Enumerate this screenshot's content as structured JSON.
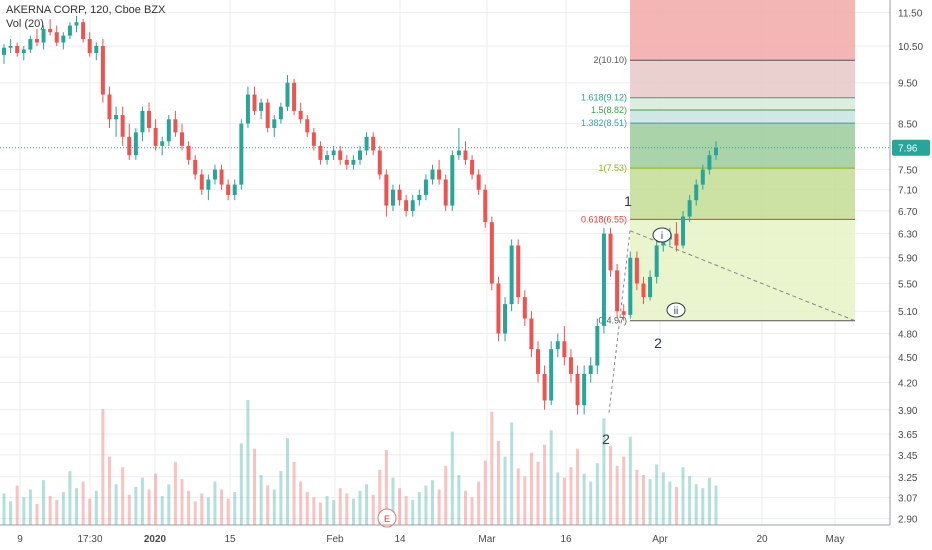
{
  "header": {
    "symbol_line": "AKERNA CORP, 120, Cboe BZX",
    "volume_label": "Vol (20)"
  },
  "colors": {
    "up": "#26a69a",
    "down": "#ef5350",
    "price_line": "#26a69a",
    "price_tag_bg": "#26a69a",
    "grid": "#ededed"
  },
  "chart_data": {
    "type": "candlestick",
    "title": "AKERNA CORP, 120, Cboe BZX",
    "y_axis_ticks": [
      "11.50",
      "10.50",
      "9.50",
      "8.50",
      "7.96",
      "7.50",
      "7.10",
      "6.70",
      "6.30",
      "5.90",
      "5.50",
      "5.10",
      "4.80",
      "4.50",
      "4.20",
      "3.90",
      "3.65",
      "3.45",
      "3.25",
      "3.07",
      "2.90"
    ],
    "price_scale": "log",
    "ylim": [
      2.85,
      11.9
    ],
    "x_axis_ticks": [
      "9",
      "17:30",
      "2020",
      "15",
      "Feb",
      "14",
      "Mar",
      "16",
      "Apr",
      "20",
      "May"
    ],
    "last_price": 7.96,
    "last_price_label": "7.96",
    "fib_levels": [
      {
        "ratio": 0,
        "price": 4.97,
        "label": "0(4.97)",
        "color": "#555555"
      },
      {
        "ratio": 0.618,
        "price": 6.55,
        "label": "0.618(6.55)",
        "color": "#e53935"
      },
      {
        "ratio": 1,
        "price": 7.53,
        "label": "1(7.53)",
        "color": "#8bb21c"
      },
      {
        "ratio": 1.382,
        "price": 8.51,
        "label": "1.382(8.51)",
        "color": "#3a9fad"
      },
      {
        "ratio": 1.5,
        "price": 8.82,
        "label": "1.5(8.82)",
        "color": "#43a047"
      },
      {
        "ratio": 1.618,
        "price": 9.12,
        "label": "1.618(9.12)",
        "color": "#26a69a"
      },
      {
        "ratio": 2,
        "price": 10.1,
        "label": "2(10.10)",
        "color": "#555555"
      }
    ],
    "wave_labels": [
      "1",
      "2",
      "2",
      "i",
      "ii"
    ],
    "event_marker": "E",
    "candles": [
      [
        10.25,
        10.55,
        10.0,
        10.45
      ],
      [
        10.45,
        10.7,
        10.3,
        10.5
      ],
      [
        10.5,
        10.6,
        10.2,
        10.3
      ],
      [
        10.3,
        10.5,
        10.1,
        10.4
      ],
      [
        10.4,
        10.8,
        10.3,
        10.7
      ],
      [
        10.7,
        11.0,
        10.5,
        10.6
      ],
      [
        10.6,
        11.1,
        10.4,
        11.0
      ],
      [
        11.0,
        11.3,
        10.8,
        10.9
      ],
      [
        10.9,
        11.1,
        10.5,
        10.6
      ],
      [
        10.6,
        10.9,
        10.4,
        10.8
      ],
      [
        10.8,
        11.2,
        10.7,
        11.1
      ],
      [
        11.1,
        11.4,
        10.9,
        11.2
      ],
      [
        11.2,
        11.3,
        10.6,
        10.7
      ],
      [
        10.7,
        10.9,
        10.2,
        10.3
      ],
      [
        10.3,
        10.6,
        10.1,
        10.5
      ],
      [
        10.5,
        10.7,
        9.0,
        9.2
      ],
      [
        9.2,
        9.4,
        8.4,
        8.6
      ],
      [
        8.6,
        8.9,
        8.2,
        8.7
      ],
      [
        8.7,
        8.9,
        8.0,
        8.2
      ],
      [
        8.2,
        8.5,
        7.7,
        7.8
      ],
      [
        7.8,
        8.4,
        7.7,
        8.3
      ],
      [
        8.3,
        8.9,
        8.1,
        8.8
      ],
      [
        8.8,
        9.0,
        8.3,
        8.4
      ],
      [
        8.4,
        8.6,
        7.9,
        8.0
      ],
      [
        8.0,
        8.2,
        7.8,
        8.1
      ],
      [
        8.1,
        8.7,
        8.0,
        8.6
      ],
      [
        8.6,
        8.8,
        8.2,
        8.3
      ],
      [
        8.3,
        8.5,
        7.9,
        8.0
      ],
      [
        8.0,
        8.1,
        7.6,
        7.7
      ],
      [
        7.7,
        7.8,
        7.3,
        7.4
      ],
      [
        7.4,
        7.5,
        7.0,
        7.1
      ],
      [
        7.1,
        7.4,
        6.9,
        7.3
      ],
      [
        7.3,
        7.6,
        7.2,
        7.5
      ],
      [
        7.5,
        7.6,
        7.1,
        7.2
      ],
      [
        7.2,
        7.3,
        6.9,
        7.0
      ],
      [
        7.0,
        7.3,
        6.9,
        7.2
      ],
      [
        7.2,
        8.6,
        7.1,
        8.5
      ],
      [
        8.5,
        9.4,
        8.4,
        9.2
      ],
      [
        9.2,
        9.4,
        8.7,
        8.8
      ],
      [
        8.8,
        9.1,
        8.6,
        9.0
      ],
      [
        9.0,
        9.1,
        8.3,
        8.4
      ],
      [
        8.4,
        8.7,
        8.2,
        8.6
      ],
      [
        8.6,
        9.0,
        8.5,
        8.9
      ],
      [
        8.9,
        9.7,
        8.8,
        9.5
      ],
      [
        9.5,
        9.6,
        8.7,
        8.8
      ],
      [
        8.8,
        9.0,
        8.5,
        8.6
      ],
      [
        8.6,
        8.7,
        8.2,
        8.3
      ],
      [
        8.3,
        8.4,
        7.9,
        8.0
      ],
      [
        8.0,
        8.1,
        7.6,
        7.7
      ],
      [
        7.7,
        7.9,
        7.6,
        7.8
      ],
      [
        7.8,
        8.0,
        7.7,
        7.9
      ],
      [
        7.9,
        8.0,
        7.6,
        7.7
      ],
      [
        7.7,
        7.8,
        7.5,
        7.6
      ],
      [
        7.6,
        7.8,
        7.5,
        7.7
      ],
      [
        7.7,
        8.0,
        7.6,
        7.9
      ],
      [
        7.9,
        8.3,
        7.8,
        8.2
      ],
      [
        8.2,
        8.3,
        7.8,
        7.9
      ],
      [
        7.9,
        8.0,
        7.3,
        7.4
      ],
      [
        7.4,
        7.5,
        6.6,
        6.8
      ],
      [
        6.8,
        7.2,
        6.7,
        7.1
      ],
      [
        7.1,
        7.2,
        6.8,
        6.9
      ],
      [
        6.9,
        7.0,
        6.6,
        6.7
      ],
      [
        6.7,
        7.0,
        6.6,
        6.9
      ],
      [
        6.9,
        7.1,
        6.8,
        7.0
      ],
      [
        7.0,
        7.4,
        6.9,
        7.3
      ],
      [
        7.3,
        7.6,
        7.2,
        7.5
      ],
      [
        7.5,
        7.7,
        7.2,
        7.3
      ],
      [
        7.3,
        7.4,
        6.7,
        6.8
      ],
      [
        6.8,
        7.9,
        6.7,
        7.8
      ],
      [
        7.8,
        8.4,
        7.7,
        7.9
      ],
      [
        7.9,
        8.1,
        7.6,
        7.7
      ],
      [
        7.7,
        7.8,
        7.3,
        7.4
      ],
      [
        7.4,
        7.5,
        7.0,
        7.1
      ],
      [
        7.1,
        7.2,
        6.4,
        6.5
      ],
      [
        6.5,
        6.6,
        5.4,
        5.5
      ],
      [
        5.5,
        5.6,
        4.7,
        4.8
      ],
      [
        4.8,
        5.3,
        4.7,
        5.2
      ],
      [
        5.2,
        6.2,
        5.1,
        6.1
      ],
      [
        6.1,
        6.2,
        5.2,
        5.3
      ],
      [
        5.3,
        5.4,
        4.9,
        5.0
      ],
      [
        5.0,
        5.1,
        4.5,
        4.6
      ],
      [
        4.6,
        4.7,
        4.2,
        4.3
      ],
      [
        4.3,
        4.4,
        3.9,
        4.0
      ],
      [
        4.0,
        4.7,
        3.95,
        4.6
      ],
      [
        4.6,
        4.8,
        4.5,
        4.7
      ],
      [
        4.7,
        4.9,
        4.4,
        4.5
      ],
      [
        4.5,
        4.6,
        4.2,
        4.3
      ],
      [
        4.3,
        4.4,
        3.85,
        3.95
      ],
      [
        3.95,
        4.4,
        3.85,
        4.3
      ],
      [
        4.3,
        4.5,
        4.2,
        4.4
      ],
      [
        4.4,
        5.0,
        4.3,
        4.9
      ],
      [
        4.9,
        6.4,
        4.8,
        6.3
      ],
      [
        6.3,
        6.4,
        5.6,
        5.7
      ],
      [
        5.7,
        5.8,
        5.0,
        5.1
      ],
      [
        5.1,
        5.2,
        4.97,
        5.05
      ],
      [
        5.05,
        6.0,
        5.0,
        5.9
      ],
      [
        5.9,
        6.0,
        5.4,
        5.5
      ],
      [
        5.5,
        5.6,
        5.2,
        5.3
      ],
      [
        5.3,
        5.7,
        5.25,
        5.6
      ],
      [
        5.6,
        6.2,
        5.5,
        6.1
      ],
      [
        6.1,
        6.3,
        6.0,
        6.2
      ],
      [
        6.2,
        6.4,
        6.1,
        6.3
      ],
      [
        6.3,
        6.5,
        6.0,
        6.1
      ],
      [
        6.1,
        6.7,
        6.05,
        6.6
      ],
      [
        6.6,
        7.0,
        6.5,
        6.9
      ],
      [
        6.9,
        7.3,
        6.8,
        7.2
      ],
      [
        7.2,
        7.6,
        7.1,
        7.5
      ],
      [
        7.5,
        7.9,
        7.4,
        7.8
      ],
      [
        7.8,
        8.1,
        7.7,
        7.96
      ]
    ],
    "volumes": [
      24,
      18,
      30,
      21,
      27,
      16,
      34,
      22,
      19,
      25,
      41,
      28,
      33,
      20,
      26,
      88,
      52,
      31,
      44,
      23,
      29,
      36,
      27,
      39,
      22,
      31,
      48,
      35,
      26,
      18,
      24,
      21,
      33,
      27,
      20,
      25,
      62,
      95,
      58,
      38,
      30,
      27,
      41,
      66,
      48,
      33,
      25,
      21,
      17,
      22,
      19,
      28,
      24,
      20,
      26,
      31,
      23,
      42,
      57,
      36,
      28,
      22,
      19,
      25,
      30,
      34,
      27,
      45,
      71,
      38,
      26,
      21,
      33,
      49,
      86,
      64,
      52,
      78,
      43,
      37,
      55,
      48,
      61,
      72,
      40,
      36,
      44,
      58,
      39,
      33,
      47,
      81,
      60,
      45,
      52,
      67,
      42,
      38,
      35,
      46,
      40,
      33,
      29,
      44,
      37,
      31,
      28,
      36,
      30
    ]
  }
}
